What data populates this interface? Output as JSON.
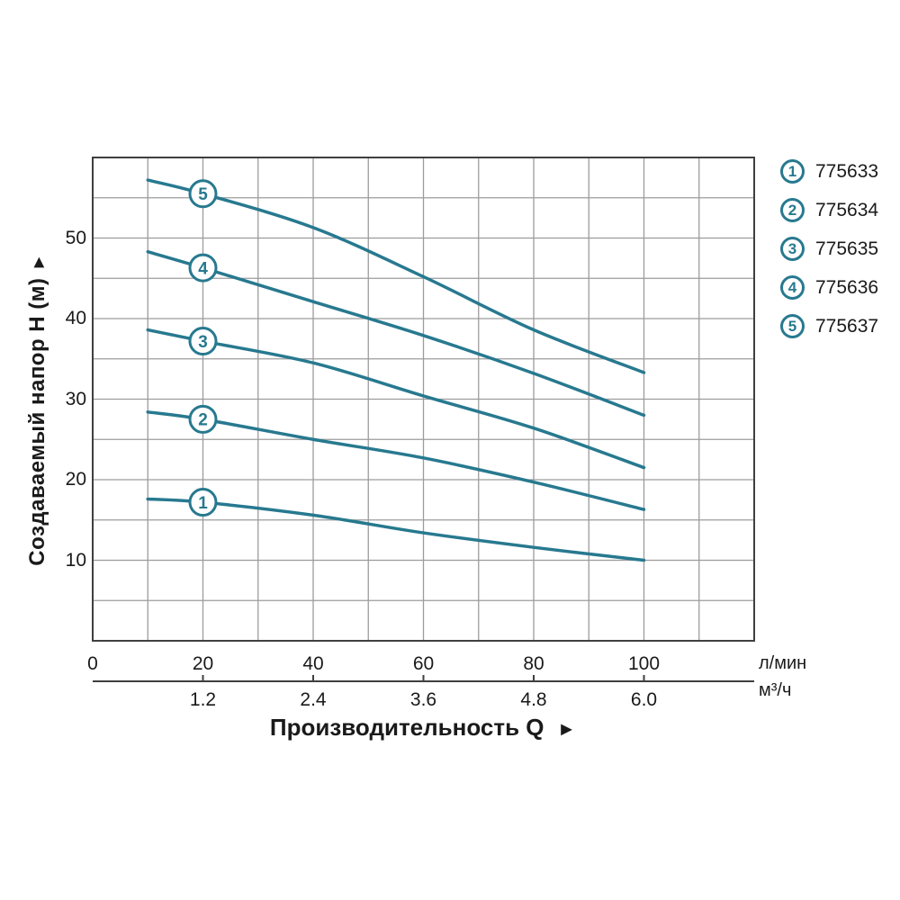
{
  "colors": {
    "accent_teal": "#27798f",
    "grid": "#9c9c9c",
    "axis": "#3f3f3f",
    "text": "#1a1a1a"
  },
  "y_axis": {
    "title": "Создаваемый напор H (м)",
    "arrow": "►",
    "ticks": [
      {
        "v": 10,
        "label": "10"
      },
      {
        "v": 20,
        "label": "20"
      },
      {
        "v": 30,
        "label": "30"
      },
      {
        "v": 40,
        "label": "40"
      },
      {
        "v": 50,
        "label": "50"
      }
    ]
  },
  "x_axis": {
    "title": "Производительность Q",
    "arrow": "►",
    "primary": {
      "unit": "л/мин",
      "ticks": [
        {
          "q": 0,
          "label": "0"
        },
        {
          "q": 20,
          "label": "20"
        },
        {
          "q": 40,
          "label": "40"
        },
        {
          "q": 60,
          "label": "60"
        },
        {
          "q": 80,
          "label": "80"
        },
        {
          "q": 100,
          "label": "100"
        }
      ]
    },
    "secondary": {
      "unit": "м³/ч",
      "ticks": [
        {
          "q": 20,
          "label": "1.2"
        },
        {
          "q": 40,
          "label": "2.4"
        },
        {
          "q": 60,
          "label": "3.6"
        },
        {
          "q": 80,
          "label": "4.8"
        },
        {
          "q": 100,
          "label": "6.0"
        }
      ]
    }
  },
  "legend": [
    {
      "marker": "1",
      "label": "775633"
    },
    {
      "marker": "2",
      "label": "775634"
    },
    {
      "marker": "3",
      "label": "775635"
    },
    {
      "marker": "4",
      "label": "775636"
    },
    {
      "marker": "5",
      "label": "775637"
    }
  ],
  "chart_data": {
    "type": "line",
    "title": "",
    "xlabel": "Производительность Q",
    "ylabel": "Создаваемый напор H (м)",
    "x_units": [
      "л/мин",
      "м³/ч"
    ],
    "xlim": [
      0,
      120
    ],
    "ylim": [
      0,
      60
    ],
    "grid": true,
    "grid_step_x": 10,
    "grid_step_y": 5,
    "legend_position": "right",
    "marker_at_x": 20,
    "series": [
      {
        "name": "775633",
        "marker": "1",
        "points": [
          [
            10,
            17.6
          ],
          [
            20,
            17.2
          ],
          [
            40,
            15.6
          ],
          [
            60,
            13.4
          ],
          [
            80,
            11.6
          ],
          [
            100,
            10.0
          ]
        ]
      },
      {
        "name": "775634",
        "marker": "2",
        "points": [
          [
            10,
            28.4
          ],
          [
            20,
            27.5
          ],
          [
            40,
            25.0
          ],
          [
            60,
            22.7
          ],
          [
            80,
            19.7
          ],
          [
            100,
            16.3
          ]
        ]
      },
      {
        "name": "775635",
        "marker": "3",
        "points": [
          [
            10,
            38.6
          ],
          [
            20,
            37.2
          ],
          [
            40,
            34.5
          ],
          [
            60,
            30.4
          ],
          [
            80,
            26.4
          ],
          [
            100,
            21.5
          ]
        ]
      },
      {
        "name": "775636",
        "marker": "4",
        "points": [
          [
            10,
            48.3
          ],
          [
            20,
            46.3
          ],
          [
            40,
            42.1
          ],
          [
            60,
            37.9
          ],
          [
            80,
            33.2
          ],
          [
            100,
            28.0
          ]
        ]
      },
      {
        "name": "775637",
        "marker": "5",
        "points": [
          [
            10,
            57.2
          ],
          [
            20,
            55.5
          ],
          [
            40,
            51.3
          ],
          [
            60,
            45.2
          ],
          [
            80,
            38.6
          ],
          [
            100,
            33.3
          ]
        ]
      }
    ]
  }
}
